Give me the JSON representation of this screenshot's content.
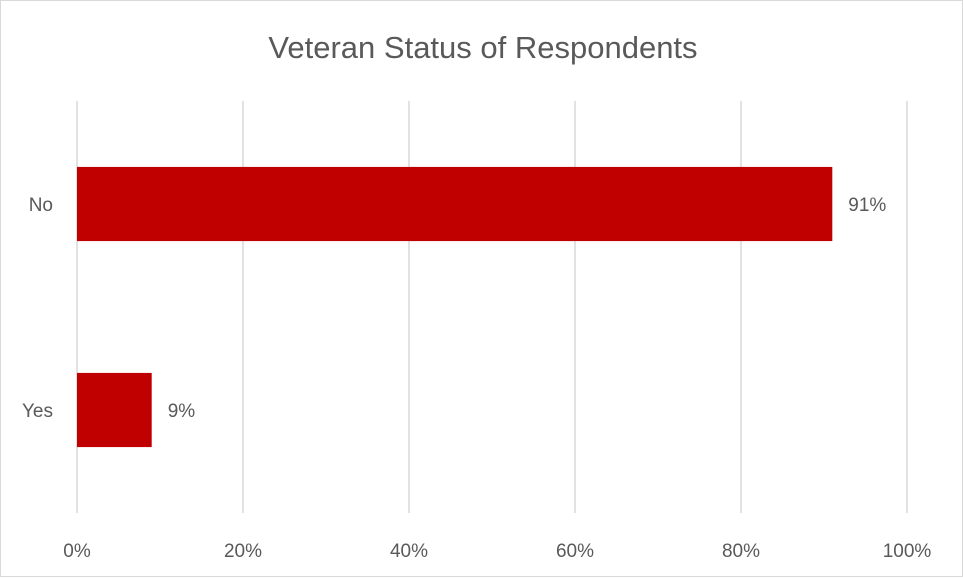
{
  "chart_data": {
    "type": "bar",
    "orientation": "horizontal",
    "title": "Veteran Status of Respondents",
    "categories": [
      "No",
      "Yes"
    ],
    "values": [
      91,
      9
    ],
    "data_labels": [
      "91%",
      "9%"
    ],
    "xlim": [
      0,
      100
    ],
    "xticks": [
      0,
      20,
      40,
      60,
      80,
      100
    ],
    "xtick_labels": [
      "0%",
      "20%",
      "40%",
      "60%",
      "80%",
      "100%"
    ],
    "xlabel": "",
    "ylabel": "",
    "grid": "vertical",
    "legend": "none",
    "bar_color": "#c00000"
  }
}
